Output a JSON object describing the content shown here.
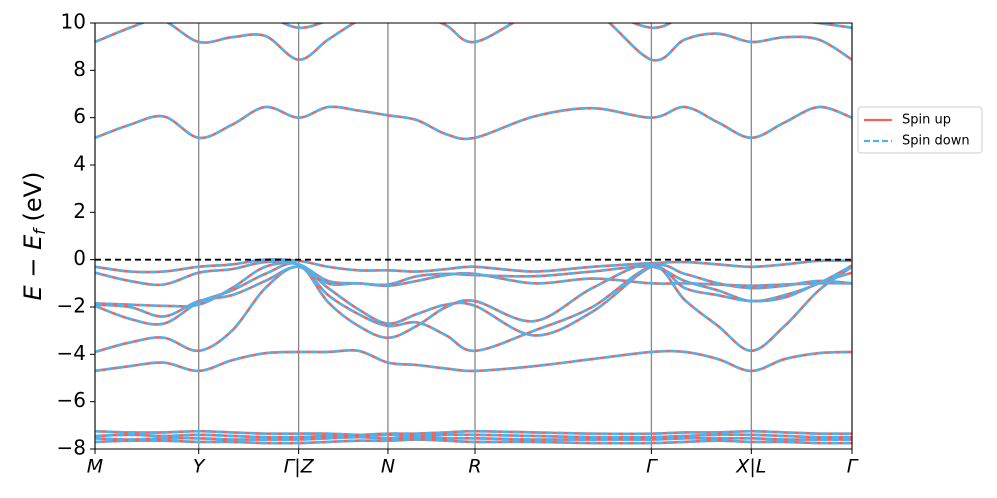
{
  "chart_data": {
    "type": "line",
    "ylabel": [
      "E − E",
      "f",
      " (eV)"
    ],
    "x": [
      0,
      0.046,
      0.091,
      0.137,
      0.181,
      0.225,
      0.269,
      0.308,
      0.348,
      0.387,
      0.425,
      0.464,
      0.502,
      0.58,
      0.657,
      0.735,
      0.779,
      0.823,
      0.867,
      0.911,
      0.956,
      1.0
    ],
    "xlim": [
      0,
      1
    ],
    "xticks": [
      {
        "value": 0,
        "label": "M"
      },
      {
        "value": 0.137,
        "label": "Y"
      },
      {
        "value": 0.269,
        "label": "Γ|Z"
      },
      {
        "value": 0.387,
        "label": "N"
      },
      {
        "value": 0.502,
        "label": "R"
      },
      {
        "value": 0.735,
        "label": "Γ"
      },
      {
        "value": 0.867,
        "label": "X|L"
      },
      {
        "value": 1.0,
        "label": "Γ"
      }
    ],
    "ylim": [
      -8,
      10
    ],
    "yticks": [
      {
        "value": -8,
        "label": "−8"
      },
      {
        "value": -6,
        "label": "−6"
      },
      {
        "value": -4,
        "label": "−4"
      },
      {
        "value": -2,
        "label": "−2"
      },
      0,
      2,
      4,
      6,
      8,
      10
    ],
    "fermi_level": 0,
    "legend": "outside right",
    "series": [
      {
        "name": "Spin up",
        "color": "#f2645a",
        "linestyle": "solid",
        "bands": [
          [
            5.15,
            5.7,
            6.05,
            5.15,
            5.7,
            6.45,
            6.0,
            6.45,
            6.3,
            6.1,
            5.9,
            5.3,
            5.15,
            6.05,
            6.4,
            6.0,
            6.45,
            5.8,
            5.15,
            5.8,
            6.45,
            6.0
          ],
          [
            9.2,
            9.8,
            10.3,
            10.5,
            10.5,
            10.3,
            9.8,
            10.1,
            10.5,
            10.6,
            10.6,
            10.5,
            10.1,
            10.5,
            10.6,
            9.8,
            10.3,
            10.5,
            10.4,
            10.2,
            10.0,
            9.8
          ],
          [
            10.5,
            10.4,
            10.1,
            9.2,
            9.4,
            9.45,
            8.45,
            9.3,
            10.1,
            10.6,
            10.4,
            9.9,
            9.2,
            10.4,
            10.5,
            8.45,
            9.3,
            9.55,
            9.2,
            9.4,
            9.3,
            8.45
          ],
          [
            -0.3,
            -0.5,
            -0.5,
            -0.3,
            -0.2,
            0.0,
            -0.05,
            -0.3,
            -0.45,
            -0.45,
            -0.5,
            -0.4,
            -0.3,
            -0.5,
            -0.3,
            -0.15,
            -0.1,
            -0.2,
            -0.3,
            -0.2,
            -0.05,
            -0.05
          ],
          [
            -0.55,
            -0.9,
            -1.05,
            -0.55,
            -0.4,
            -0.1,
            -0.2,
            -0.9,
            -1.0,
            -1.05,
            -0.7,
            -0.6,
            -0.65,
            -0.7,
            -0.5,
            -0.3,
            -0.9,
            -1.3,
            -1.75,
            -1.5,
            -1.0,
            -0.25
          ],
          [
            -1.85,
            -1.9,
            -1.95,
            -1.9,
            -1.2,
            -0.3,
            -0.2,
            -1.0,
            -1.0,
            -1.1,
            -0.9,
            -0.65,
            -0.6,
            -1.0,
            -0.8,
            -1.0,
            -1.0,
            -1.05,
            -1.1,
            -1.05,
            -1.0,
            -1.0
          ],
          [
            -1.95,
            -2.5,
            -2.7,
            -1.8,
            -1.3,
            -0.6,
            -0.2,
            -1.8,
            -2.8,
            -3.3,
            -2.8,
            -2.0,
            -1.75,
            -2.6,
            -1.2,
            -0.2,
            -1.7,
            -2.8,
            -3.85,
            -2.8,
            -1.3,
            -0.3
          ],
          [
            -3.9,
            -3.5,
            -3.3,
            -3.85,
            -3.0,
            -1.2,
            -0.3,
            -1.5,
            -2.3,
            -2.8,
            -2.65,
            -3.2,
            -3.85,
            -3.0,
            -2.0,
            -0.3,
            -1.2,
            -1.5,
            -1.75,
            -1.6,
            -1.0,
            -0.55
          ],
          [
            -1.9,
            -2.0,
            -2.4,
            -1.75,
            -1.5,
            -0.9,
            -0.3,
            -1.2,
            -2.1,
            -2.7,
            -2.3,
            -1.9,
            -1.95,
            -3.2,
            -2.2,
            -0.3,
            -0.6,
            -1.0,
            -1.2,
            -1.1,
            -0.9,
            -1.0
          ],
          [
            -4.7,
            -4.5,
            -4.35,
            -4.7,
            -4.25,
            -3.95,
            -3.9,
            -3.9,
            -3.85,
            -4.35,
            -4.45,
            -4.6,
            -4.7,
            -4.5,
            -4.2,
            -3.9,
            -3.9,
            -4.2,
            -4.7,
            -4.2,
            -3.95,
            -3.9
          ],
          [
            -7.25,
            -7.3,
            -7.3,
            -7.25,
            -7.3,
            -7.35,
            -7.35,
            -7.35,
            -7.4,
            -7.35,
            -7.35,
            -7.3,
            -7.25,
            -7.3,
            -7.35,
            -7.35,
            -7.3,
            -7.3,
            -7.25,
            -7.3,
            -7.35,
            -7.35
          ],
          [
            -7.45,
            -7.4,
            -7.45,
            -7.4,
            -7.45,
            -7.5,
            -7.5,
            -7.45,
            -7.45,
            -7.4,
            -7.45,
            -7.4,
            -7.4,
            -7.45,
            -7.5,
            -7.5,
            -7.45,
            -7.4,
            -7.4,
            -7.45,
            -7.5,
            -7.5
          ],
          [
            -7.55,
            -7.6,
            -7.55,
            -7.55,
            -7.6,
            -7.6,
            -7.6,
            -7.55,
            -7.5,
            -7.55,
            -7.5,
            -7.55,
            -7.55,
            -7.6,
            -7.6,
            -7.6,
            -7.55,
            -7.55,
            -7.55,
            -7.6,
            -7.6,
            -7.6
          ],
          [
            -7.7,
            -7.65,
            -7.65,
            -7.7,
            -7.7,
            -7.75,
            -7.75,
            -7.7,
            -7.65,
            -7.65,
            -7.6,
            -7.65,
            -7.7,
            -7.7,
            -7.75,
            -7.75,
            -7.7,
            -7.65,
            -7.7,
            -7.7,
            -7.75,
            -7.75
          ]
        ]
      },
      {
        "name": "Spin down",
        "color": "#4db2f0",
        "linestyle": "dashed",
        "bands": [
          [
            5.15,
            5.7,
            6.05,
            5.15,
            5.7,
            6.45,
            6.0,
            6.45,
            6.3,
            6.1,
            5.9,
            5.3,
            5.15,
            6.05,
            6.4,
            6.0,
            6.45,
            5.8,
            5.15,
            5.8,
            6.45,
            6.0
          ],
          [
            9.2,
            9.8,
            10.3,
            10.5,
            10.5,
            10.3,
            9.8,
            10.1,
            10.5,
            10.6,
            10.6,
            10.5,
            10.1,
            10.5,
            10.6,
            9.8,
            10.3,
            10.5,
            10.4,
            10.2,
            10.0,
            9.8
          ],
          [
            10.5,
            10.4,
            10.1,
            9.2,
            9.4,
            9.45,
            8.45,
            9.3,
            10.1,
            10.6,
            10.4,
            9.9,
            9.2,
            10.4,
            10.5,
            8.45,
            9.3,
            9.55,
            9.2,
            9.4,
            9.3,
            8.45
          ],
          [
            -0.3,
            -0.5,
            -0.5,
            -0.3,
            -0.2,
            0.0,
            -0.05,
            -0.3,
            -0.45,
            -0.45,
            -0.5,
            -0.4,
            -0.3,
            -0.5,
            -0.3,
            -0.15,
            -0.1,
            -0.2,
            -0.3,
            -0.2,
            -0.05,
            -0.05
          ],
          [
            -0.55,
            -0.9,
            -1.05,
            -0.55,
            -0.4,
            -0.1,
            -0.2,
            -0.9,
            -1.0,
            -1.05,
            -0.7,
            -0.6,
            -0.65,
            -0.7,
            -0.5,
            -0.3,
            -0.9,
            -1.3,
            -1.75,
            -1.5,
            -1.0,
            -0.25
          ],
          [
            -1.85,
            -1.9,
            -1.95,
            -1.9,
            -1.2,
            -0.3,
            -0.2,
            -1.0,
            -1.0,
            -1.1,
            -0.9,
            -0.65,
            -0.6,
            -1.0,
            -0.8,
            -1.0,
            -1.0,
            -1.05,
            -1.1,
            -1.05,
            -1.0,
            -1.0
          ],
          [
            -1.95,
            -2.5,
            -2.7,
            -1.8,
            -1.3,
            -0.6,
            -0.2,
            -1.8,
            -2.8,
            -3.3,
            -2.8,
            -2.0,
            -1.75,
            -2.6,
            -1.2,
            -0.2,
            -1.7,
            -2.8,
            -3.85,
            -2.8,
            -1.3,
            -0.3
          ],
          [
            -3.9,
            -3.5,
            -3.3,
            -3.85,
            -3.0,
            -1.2,
            -0.3,
            -1.5,
            -2.3,
            -2.8,
            -2.65,
            -3.2,
            -3.85,
            -3.0,
            -2.0,
            -0.3,
            -1.2,
            -1.5,
            -1.75,
            -1.6,
            -1.0,
            -0.55
          ],
          [
            -1.9,
            -2.0,
            -2.4,
            -1.75,
            -1.5,
            -0.9,
            -0.3,
            -1.2,
            -2.1,
            -2.7,
            -2.3,
            -1.9,
            -1.95,
            -3.2,
            -2.2,
            -0.3,
            -0.6,
            -1.0,
            -1.2,
            -1.1,
            -0.9,
            -1.0
          ],
          [
            -4.7,
            -4.5,
            -4.35,
            -4.7,
            -4.25,
            -3.95,
            -3.9,
            -3.9,
            -3.85,
            -4.35,
            -4.45,
            -4.6,
            -4.7,
            -4.5,
            -4.2,
            -3.9,
            -3.9,
            -4.2,
            -4.7,
            -4.2,
            -3.95,
            -3.9
          ],
          [
            -7.25,
            -7.3,
            -7.3,
            -7.25,
            -7.3,
            -7.35,
            -7.35,
            -7.35,
            -7.4,
            -7.35,
            -7.35,
            -7.3,
            -7.25,
            -7.3,
            -7.35,
            -7.35,
            -7.3,
            -7.3,
            -7.25,
            -7.3,
            -7.35,
            -7.35
          ],
          [
            -7.45,
            -7.4,
            -7.45,
            -7.4,
            -7.45,
            -7.5,
            -7.5,
            -7.45,
            -7.45,
            -7.4,
            -7.45,
            -7.4,
            -7.4,
            -7.45,
            -7.5,
            -7.5,
            -7.45,
            -7.4,
            -7.4,
            -7.45,
            -7.5,
            -7.5
          ],
          [
            -7.55,
            -7.6,
            -7.55,
            -7.55,
            -7.6,
            -7.6,
            -7.6,
            -7.55,
            -7.5,
            -7.55,
            -7.5,
            -7.55,
            -7.55,
            -7.6,
            -7.6,
            -7.6,
            -7.55,
            -7.55,
            -7.55,
            -7.6,
            -7.6,
            -7.6
          ],
          [
            -7.7,
            -7.65,
            -7.65,
            -7.7,
            -7.7,
            -7.75,
            -7.75,
            -7.7,
            -7.65,
            -7.65,
            -7.6,
            -7.65,
            -7.7,
            -7.7,
            -7.75,
            -7.75,
            -7.7,
            -7.65,
            -7.7,
            -7.7,
            -7.75,
            -7.75
          ]
        ]
      }
    ]
  }
}
